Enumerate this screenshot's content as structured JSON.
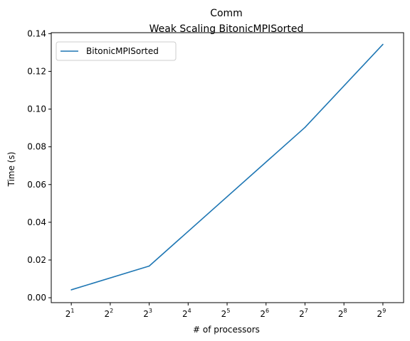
{
  "chart_data": {
    "type": "line",
    "title": "Comm",
    "subtitle": "Weak Scaling BitonicMPISorted",
    "xlabel": "# of processors",
    "ylabel": "Time (s)",
    "x_scale": "log2",
    "x": [
      2,
      8,
      128,
      512
    ],
    "xlim": [
      1.4,
      740
    ],
    "x_ticks": [
      {
        "base": "2",
        "exp": "1"
      },
      {
        "base": "2",
        "exp": "2"
      },
      {
        "base": "2",
        "exp": "3"
      },
      {
        "base": "2",
        "exp": "4"
      },
      {
        "base": "2",
        "exp": "5"
      },
      {
        "base": "2",
        "exp": "6"
      },
      {
        "base": "2",
        "exp": "7"
      },
      {
        "base": "2",
        "exp": "8"
      },
      {
        "base": "2",
        "exp": "9"
      }
    ],
    "ylim": [
      -0.0026,
      0.1405
    ],
    "y_ticks": [
      "0.00",
      "0.02",
      "0.04",
      "0.06",
      "0.08",
      "0.10",
      "0.12",
      "0.14"
    ],
    "series": [
      {
        "name": "BitonicMPISorted",
        "color": "#1f77b4",
        "values": [
          0.0042,
          0.0168,
          0.0903,
          0.1343
        ]
      }
    ],
    "legend": "top-left",
    "grid": false
  }
}
